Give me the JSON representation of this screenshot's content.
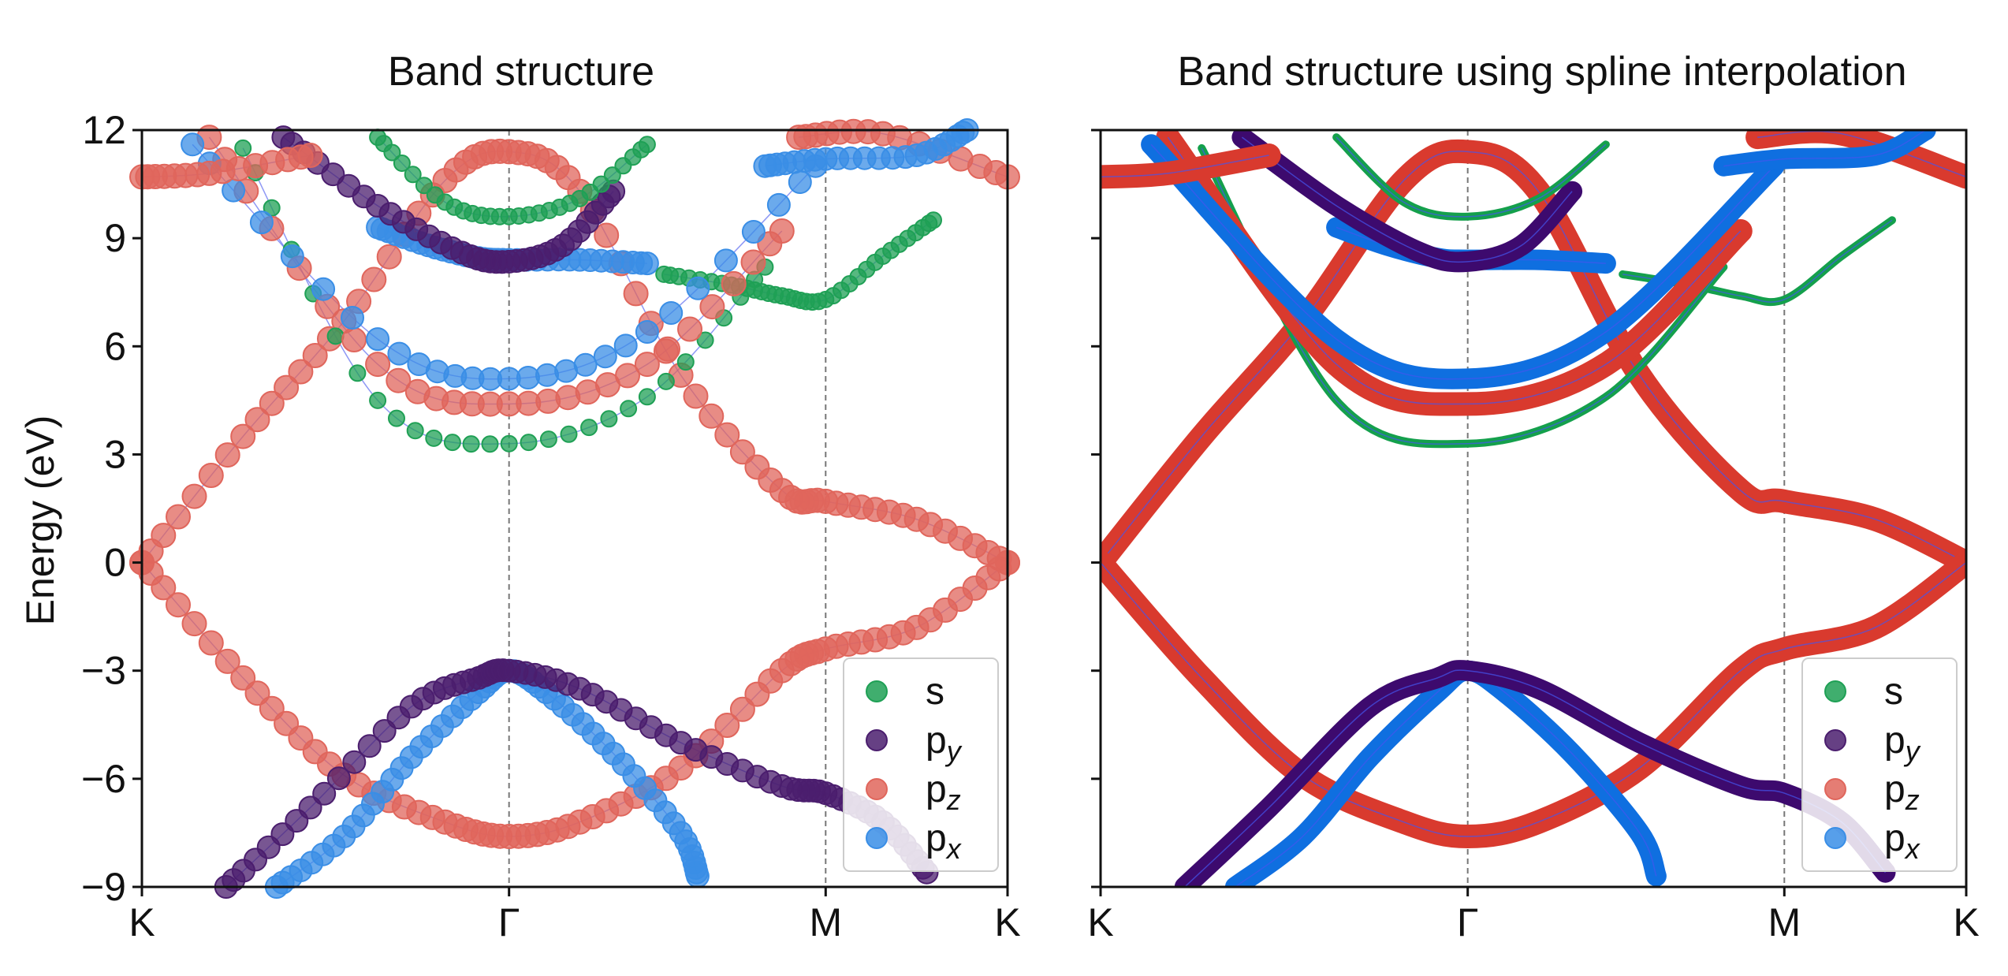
{
  "chart_data": [
    {
      "type": "scatter",
      "title": "Band structure",
      "xlabel": "",
      "ylabel": "Energy (eV)",
      "xlim": [
        0,
        2.57
      ],
      "ylim": [
        -9,
        12
      ],
      "x_ticks": [
        {
          "value": 0,
          "label": "K"
        },
        {
          "value": 1.09,
          "label": "Γ"
        },
        {
          "value": 2.03,
          "label": "M"
        },
        {
          "value": 2.57,
          "label": "K"
        }
      ],
      "y_ticks": [
        {
          "value": -9,
          "label": "−9"
        },
        {
          "value": -6,
          "label": "−6"
        },
        {
          "value": -3,
          "label": "−3"
        },
        {
          "value": 0,
          "label": "0"
        },
        {
          "value": 3,
          "label": "3"
        },
        {
          "value": 6,
          "label": "6"
        },
        {
          "value": 9,
          "label": "9"
        },
        {
          "value": 12,
          "label": "12"
        }
      ],
      "vlines": [
        1.09,
        2.03
      ],
      "legend_position": "lower-right",
      "legend": [
        {
          "label": "s",
          "sub": "",
          "color": "#1fa055"
        },
        {
          "label": "p",
          "sub": "y",
          "color": "#4b1e6e"
        },
        {
          "label": "p",
          "sub": "z",
          "color": "#e0665c"
        },
        {
          "label": "p",
          "sub": "x",
          "color": "#3a8ee6"
        }
      ],
      "bands": [
        {
          "orbital": "pz",
          "x": [
            0,
            0.3,
            0.6,
            0.9,
            1.09,
            1.3,
            1.6,
            1.9,
            2.03,
            2.3,
            2.57
          ],
          "y": [
            0,
            3.5,
            6.7,
            10.6,
            11.4,
            10.3,
            5.2,
            2.0,
            1.7,
            1.2,
            0
          ]
        },
        {
          "orbital": "pz",
          "x": [
            0,
            0.3,
            0.6,
            0.9,
            1.09,
            1.3,
            1.6,
            1.9,
            2.03,
            2.3,
            2.57
          ],
          "y": [
            0,
            -3.2,
            -5.9,
            -7.2,
            -7.6,
            -7.2,
            -5.7,
            -3.0,
            -2.4,
            -1.8,
            0
          ]
        },
        {
          "orbital": "px",
          "x": [
            0.4,
            0.6,
            0.8,
            1.0,
            1.09,
            1.2,
            1.4,
            1.6,
            1.65
          ],
          "y": [
            -9,
            -7.6,
            -5.4,
            -3.6,
            -3.0,
            -3.6,
            -5.3,
            -7.5,
            -8.7
          ]
        },
        {
          "orbital": "py",
          "x": [
            0.25,
            0.5,
            0.8,
            1.0,
            1.09,
            1.3,
            1.6,
            1.9,
            2.03,
            2.2,
            2.33
          ],
          "y": [
            -9,
            -6.8,
            -4.0,
            -3.2,
            -3.0,
            -3.5,
            -5.0,
            -6.2,
            -6.4,
            -7.2,
            -8.6
          ]
        },
        {
          "orbital": "px",
          "x": [
            0.7,
            0.85,
            1.0,
            1.09,
            1.3,
            1.5
          ],
          "y": [
            9.3,
            8.8,
            8.45,
            8.4,
            8.4,
            8.3
          ]
        },
        {
          "orbital": "s",
          "x": [
            1.55,
            1.75,
            1.9,
            2.03,
            2.2,
            2.35
          ],
          "y": [
            8.0,
            7.7,
            7.4,
            7.3,
            8.5,
            9.5
          ]
        },
        {
          "orbital": "py",
          "x": [
            0.42,
            0.7,
            0.95,
            1.09,
            1.25,
            1.4
          ],
          "y": [
            11.8,
            9.9,
            8.6,
            8.35,
            8.8,
            10.3
          ]
        },
        {
          "orbital": "s",
          "x": [
            0.3,
            0.7,
            1.09,
            1.5,
            1.85
          ],
          "y": [
            11.5,
            4.5,
            3.3,
            4.6,
            8.2
          ]
        },
        {
          "orbital": "pz",
          "x": [
            0.2,
            0.7,
            1.09,
            1.5,
            1.9
          ],
          "y": [
            11.8,
            5.5,
            4.4,
            5.5,
            9.2
          ]
        },
        {
          "orbital": "px",
          "x": [
            0.15,
            0.7,
            1.09,
            1.5,
            2.0
          ],
          "y": [
            11.6,
            6.2,
            5.1,
            6.4,
            11.0
          ]
        },
        {
          "orbital": "s",
          "x": [
            0.7,
            0.9,
            1.09,
            1.3,
            1.5
          ],
          "y": [
            11.8,
            10.0,
            9.6,
            10.1,
            11.6
          ]
        },
        {
          "orbital": "pz",
          "x": [
            0,
            0.2,
            0.5
          ],
          "y": [
            10.7,
            10.8,
            11.3
          ]
        },
        {
          "orbital": "pz",
          "x": [
            1.95,
            2.2,
            2.57
          ],
          "y": [
            11.8,
            11.9,
            10.7
          ]
        },
        {
          "orbital": "px",
          "x": [
            1.85,
            2.03,
            2.3,
            2.45
          ],
          "y": [
            11.0,
            11.2,
            11.3,
            12.0
          ]
        }
      ]
    },
    {
      "type": "line",
      "title": "Band structure using spline interpolation",
      "xlabel": "",
      "ylabel": "",
      "xlim": [
        0,
        2.57
      ],
      "ylim": [
        -9,
        12
      ],
      "x_ticks": [
        {
          "value": 0,
          "label": "K"
        },
        {
          "value": 1.09,
          "label": "Γ"
        },
        {
          "value": 2.03,
          "label": "M"
        },
        {
          "value": 2.57,
          "label": "K"
        }
      ],
      "y_ticks_labels_shown": false,
      "vlines": [
        1.09,
        2.03
      ],
      "legend_position": "lower-right",
      "legend": [
        {
          "label": "s",
          "sub": "",
          "color": "#1fa055"
        },
        {
          "label": "p",
          "sub": "y",
          "color": "#4b1e6e"
        },
        {
          "label": "p",
          "sub": "z",
          "color": "#e0665c"
        },
        {
          "label": "p",
          "sub": "x",
          "color": "#3a8ee6"
        }
      ]
    }
  ],
  "colors": {
    "s": "#1fa055",
    "py": "#4b1e6e",
    "pz": "#e0665c",
    "px": "#3a8ee6",
    "spline_pz": "#d93a2e",
    "spline_px": "#0f6fe0",
    "spline_py": "#3d0a6e",
    "spline_s": "#14a04c",
    "link_line": "#4455ee"
  }
}
